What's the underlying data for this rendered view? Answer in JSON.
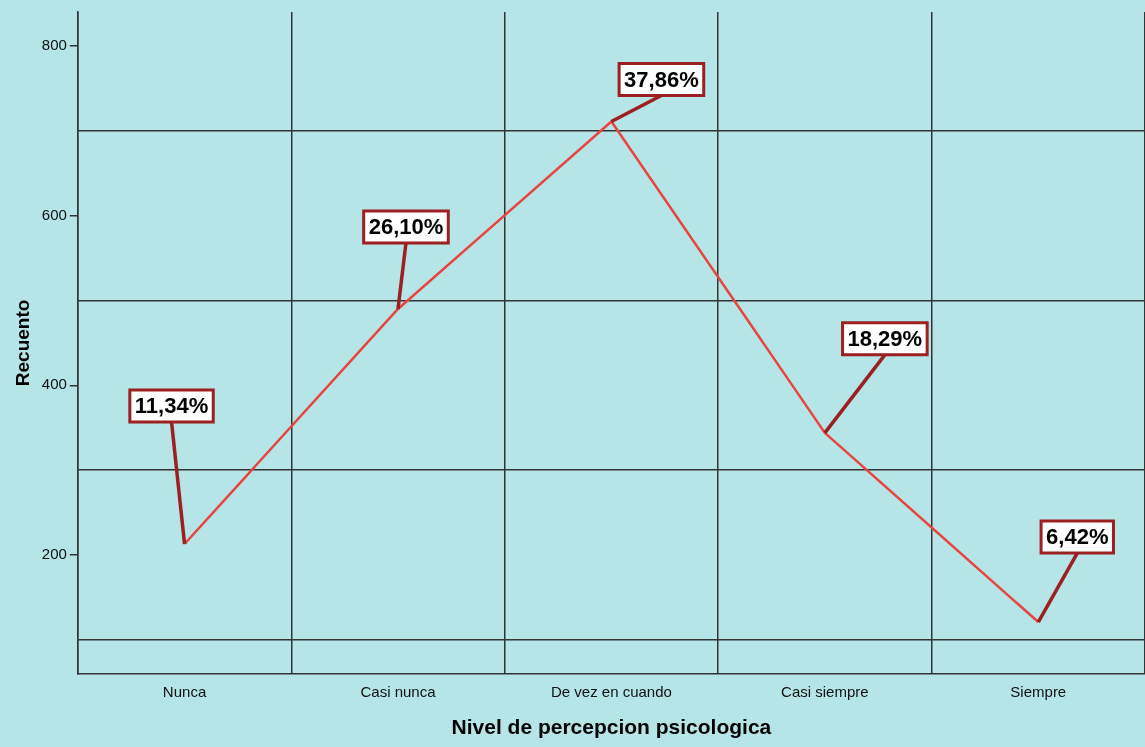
{
  "chart_data": {
    "type": "line",
    "xlabel": "Nivel de percepcion psicologica",
    "ylabel": "Recuento",
    "categories": [
      "Nunca",
      "Casi nunca",
      "De vez en cuando",
      "Casi siempre",
      "Siempre"
    ],
    "series": [
      {
        "color": "#ea4440",
        "values": [
          213,
          490,
          711,
          344,
          121
        ]
      }
    ],
    "annotations": [
      {
        "text": "11,34%",
        "x": "Nunca",
        "y": 213
      },
      {
        "text": "26,10%",
        "x": "Casi nunca",
        "y": 490
      },
      {
        "text": "37,86%",
        "x": "De vez en cuando",
        "y": 711
      },
      {
        "text": "18,29%",
        "x": "Casi siempre",
        "y": 344
      },
      {
        "text": "6,42%",
        "x": "Siempre",
        "y": 121
      }
    ],
    "ylim": [
      60,
      840
    ],
    "yticks": [
      {
        "value": 100,
        "label": null
      },
      200,
      {
        "value": 300,
        "label": null
      },
      400,
      {
        "value": 500,
        "label": null
      },
      600,
      {
        "value": 700,
        "label": null
      },
      800
    ],
    "grid": true,
    "legend": false,
    "marker": "none",
    "line_style": "solid"
  }
}
